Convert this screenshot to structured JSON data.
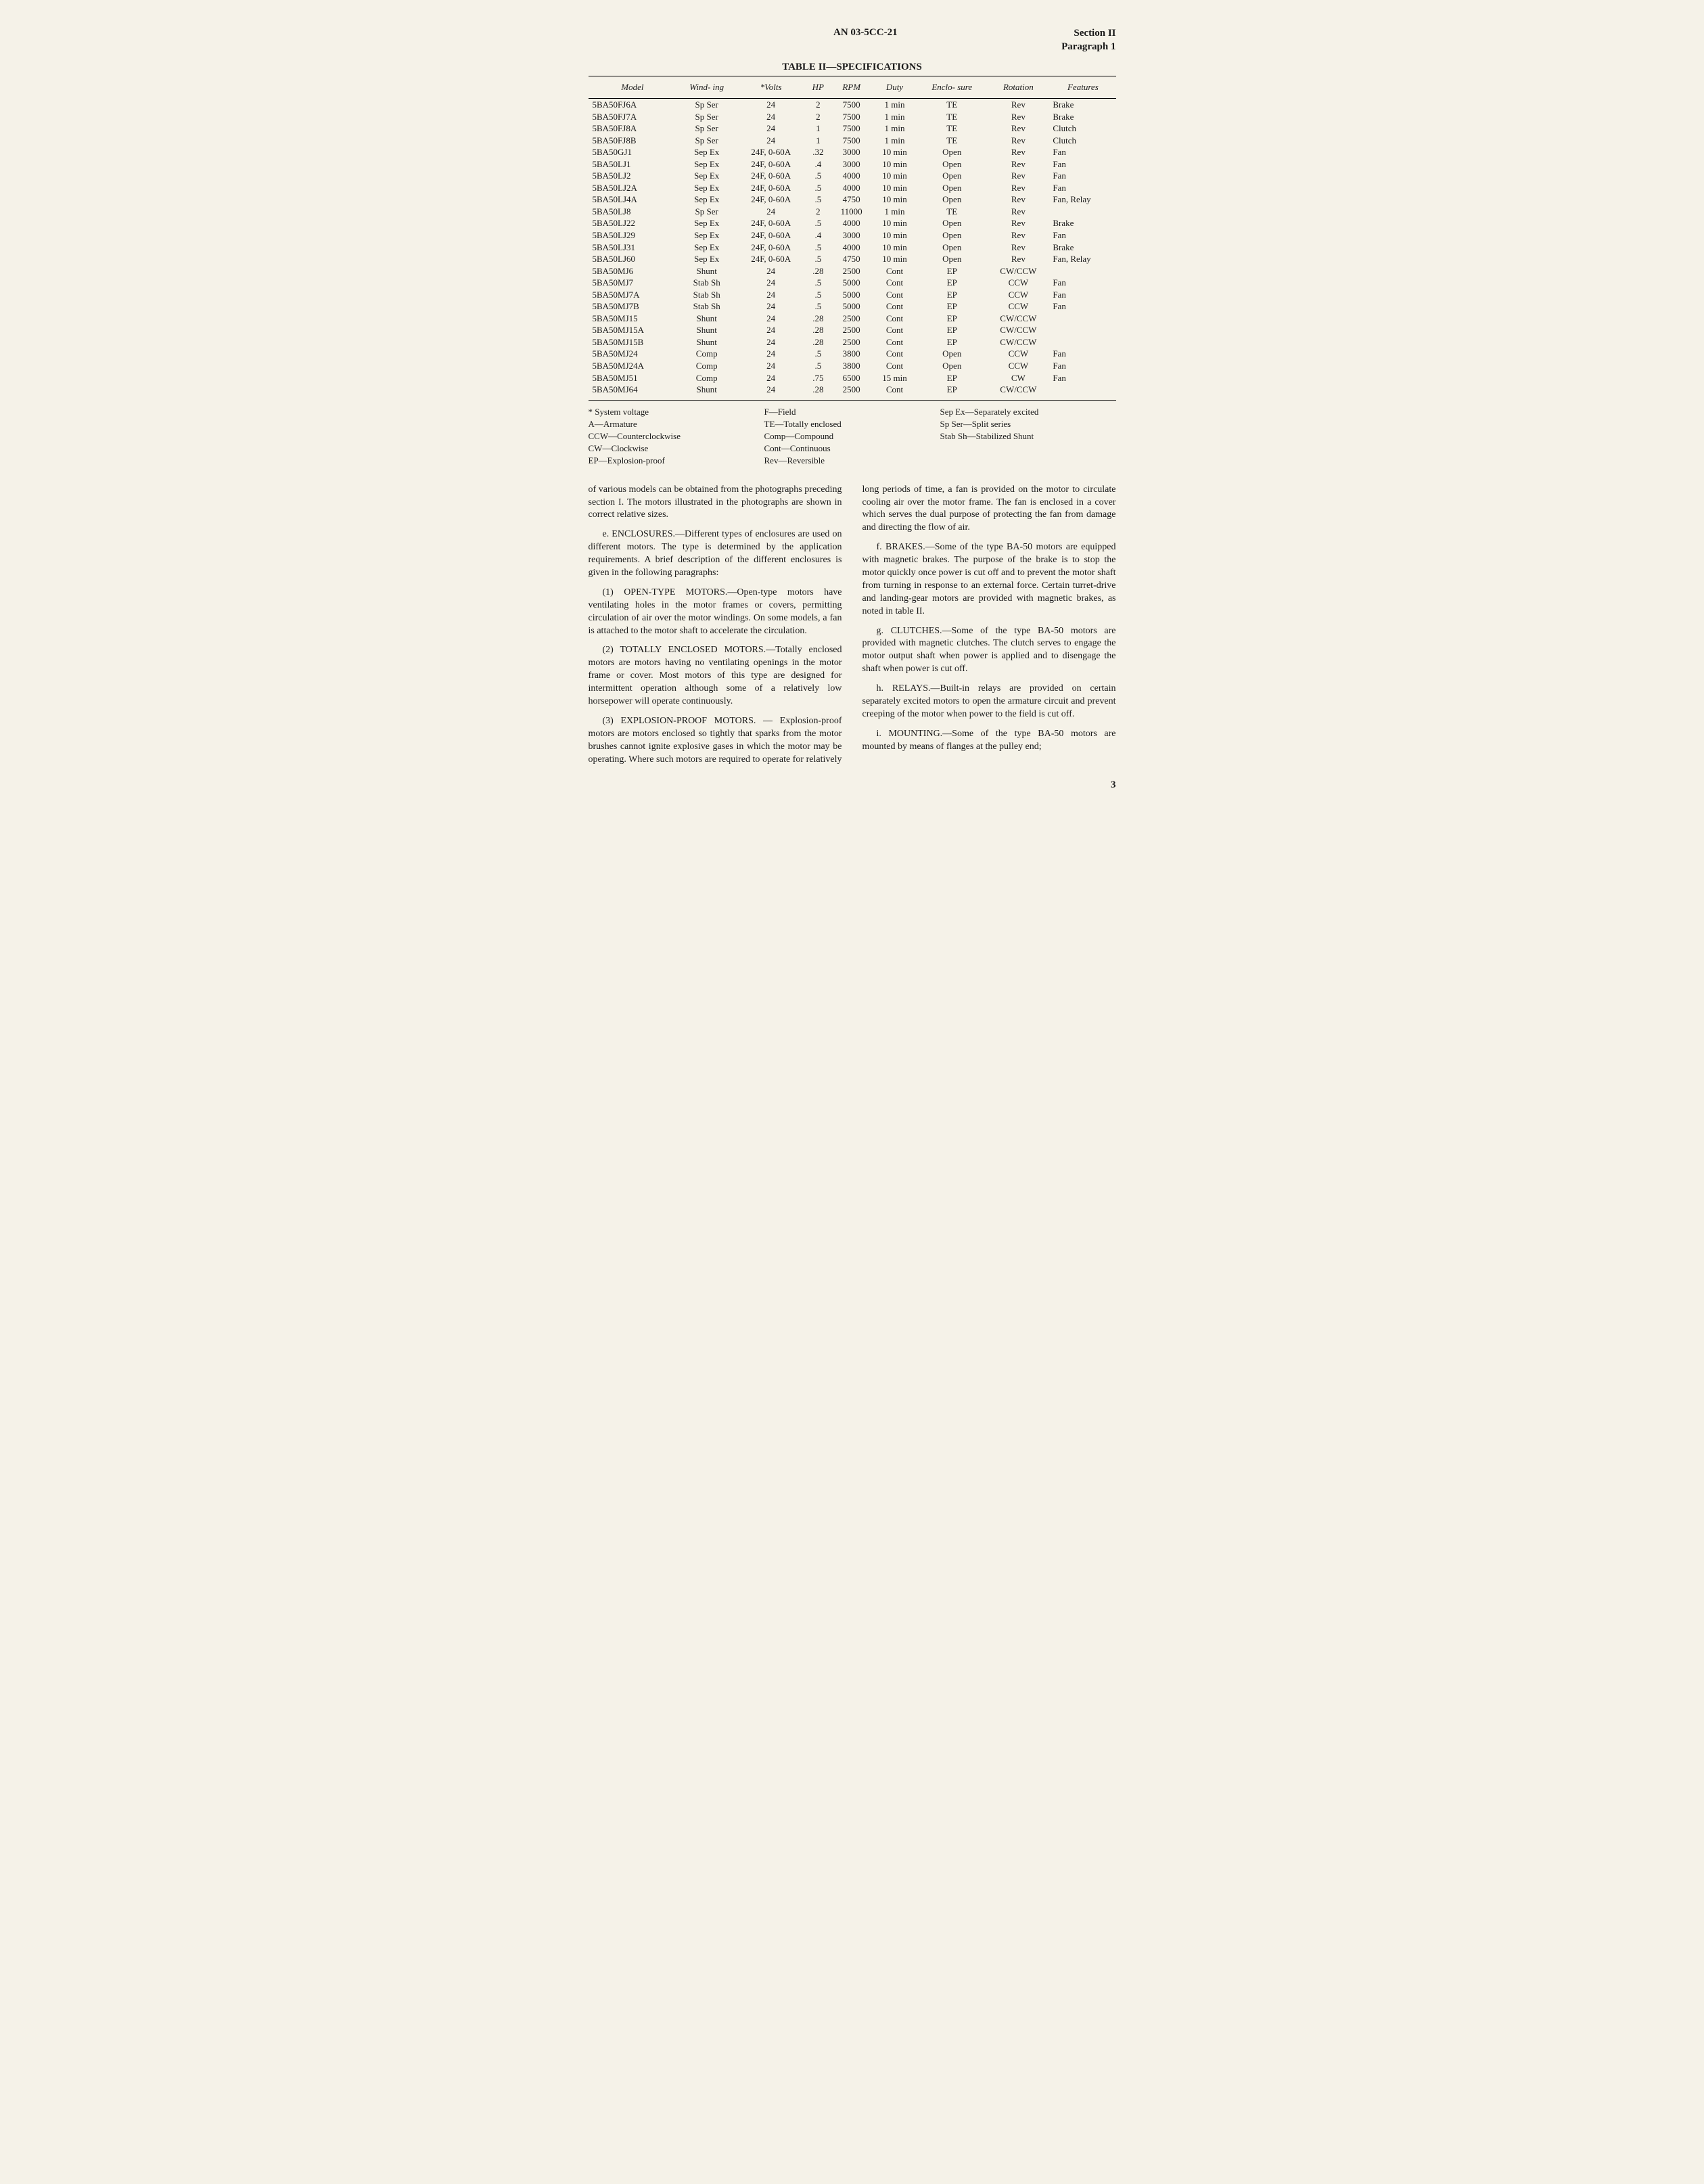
{
  "header": {
    "doc_id": "AN 03-5CC-21",
    "section": "Section II",
    "paragraph": "Paragraph 1"
  },
  "table": {
    "title": "TABLE II—SPECIFICATIONS",
    "columns": [
      "Model",
      "Wind-\ning",
      "*Volts",
      "HP",
      "RPM",
      "Duty",
      "Enclo-\nsure",
      "Rotation",
      "Features"
    ],
    "rows": [
      [
        "5BA50FJ6A",
        "Sp Ser",
        "24",
        "2",
        "7500",
        "1 min",
        "TE",
        "Rev",
        "Brake"
      ],
      [
        "5BA50FJ7A",
        "Sp Ser",
        "24",
        "2",
        "7500",
        "1 min",
        "TE",
        "Rev",
        "Brake"
      ],
      [
        "5BA50FJ8A",
        "Sp Ser",
        "24",
        "1",
        "7500",
        "1 min",
        "TE",
        "Rev",
        "Clutch"
      ],
      [
        "5BA50FJ8B",
        "Sp Ser",
        "24",
        "1",
        "7500",
        "1 min",
        "TE",
        "Rev",
        "Clutch"
      ],
      [
        "5BA50GJ1",
        "Sep Ex",
        "24F, 0-60A",
        ".32",
        "3000",
        "10 min",
        "Open",
        "Rev",
        "Fan"
      ],
      [
        "5BA50LJ1",
        "Sep Ex",
        "24F, 0-60A",
        ".4",
        "3000",
        "10 min",
        "Open",
        "Rev",
        "Fan"
      ],
      [
        "5BA50LJ2",
        "Sep Ex",
        "24F, 0-60A",
        ".5",
        "4000",
        "10 min",
        "Open",
        "Rev",
        "Fan"
      ],
      [
        "5BA50LJ2A",
        "Sep Ex",
        "24F, 0-60A",
        ".5",
        "4000",
        "10 min",
        "Open",
        "Rev",
        "Fan"
      ],
      [
        "5BA50LJ4A",
        "Sep Ex",
        "24F, 0-60A",
        ".5",
        "4750",
        "10 min",
        "Open",
        "Rev",
        "Fan, Relay"
      ],
      [
        "5BA50LJ8",
        "Sp Ser",
        "24",
        "2",
        "11000",
        "1 min",
        "TE",
        "Rev",
        ""
      ],
      [
        "5BA50LJ22",
        "Sep Ex",
        "24F, 0-60A",
        ".5",
        "4000",
        "10 min",
        "Open",
        "Rev",
        "Brake"
      ],
      [
        "5BA50LJ29",
        "Sep Ex",
        "24F, 0-60A",
        ".4",
        "3000",
        "10 min",
        "Open",
        "Rev",
        "Fan"
      ],
      [
        "5BA50LJ31",
        "Sep Ex",
        "24F, 0-60A",
        ".5",
        "4000",
        "10 min",
        "Open",
        "Rev",
        "Brake"
      ],
      [
        "5BA50LJ60",
        "Sep Ex",
        "24F, 0-60A",
        ".5",
        "4750",
        "10 min",
        "Open",
        "Rev",
        "Fan, Relay"
      ],
      [
        "5BA50MJ6",
        "Shunt",
        "24",
        ".28",
        "2500",
        "Cont",
        "EP",
        "CW/CCW",
        ""
      ],
      [
        "5BA50MJ7",
        "Stab Sh",
        "24",
        ".5",
        "5000",
        "Cont",
        "EP",
        "CCW",
        "Fan"
      ],
      [
        "5BA50MJ7A",
        "Stab Sh",
        "24",
        ".5",
        "5000",
        "Cont",
        "EP",
        "CCW",
        "Fan"
      ],
      [
        "5BA50MJ7B",
        "Stab Sh",
        "24",
        ".5",
        "5000",
        "Cont",
        "EP",
        "CCW",
        "Fan"
      ],
      [
        "5BA50MJ15",
        "Shunt",
        "24",
        ".28",
        "2500",
        "Cont",
        "EP",
        "CW/CCW",
        ""
      ],
      [
        "5BA50MJ15A",
        "Shunt",
        "24",
        ".28",
        "2500",
        "Cont",
        "EP",
        "CW/CCW",
        ""
      ],
      [
        "5BA50MJ15B",
        "Shunt",
        "24",
        ".28",
        "2500",
        "Cont",
        "EP",
        "CW/CCW",
        ""
      ],
      [
        "5BA50MJ24",
        "Comp",
        "24",
        ".5",
        "3800",
        "Cont",
        "Open",
        "CCW",
        "Fan"
      ],
      [
        "5BA50MJ24A",
        "Comp",
        "24",
        ".5",
        "3800",
        "Cont",
        "Open",
        "CCW",
        "Fan"
      ],
      [
        "5BA50MJ51",
        "Comp",
        "24",
        ".75",
        "6500",
        "15 min",
        "EP",
        "CW",
        "Fan"
      ],
      [
        "5BA50MJ64",
        "Shunt",
        "24",
        ".28",
        "2500",
        "Cont",
        "EP",
        "CW/CCW",
        ""
      ]
    ]
  },
  "legend": {
    "col1": [
      "* System voltage",
      "A—Armature",
      "CCW—Counterclockwise",
      "CW—Clockwise",
      "EP—Explosion-proof"
    ],
    "col2": [
      "F—Field",
      "TE—Totally enclosed",
      "Comp—Compound",
      "Cont—Continuous",
      "Rev—Reversible"
    ],
    "col3": [
      "Sep Ex—Separately excited",
      "Sp Ser—Split series",
      "Stab Sh—Stabilized Shunt"
    ]
  },
  "body": {
    "p1": "of various models can be obtained from the photographs preceding section I. The motors illustrated in the photographs are shown in correct relative sizes.",
    "p2": "e. ENCLOSURES.—Different types of enclosures are used on different motors. The type is determined by the application requirements. A brief description of the different enclosures is given in the following paragraphs:",
    "p3": "(1) OPEN-TYPE MOTORS.—Open-type motors have ventilating holes in the motor frames or covers, permitting circulation of air over the motor windings. On some models, a fan is attached to the motor shaft to accelerate the circulation.",
    "p4": "(2) TOTALLY ENCLOSED MOTORS.—Totally enclosed motors are motors having no ventilating openings in the motor frame or cover. Most motors of this type are designed for intermittent operation although some of a relatively low horsepower will operate continuously.",
    "p5": "(3) EXPLOSION-PROOF MOTORS. — Explosion-proof motors are motors enclosed so tightly that sparks from the motor brushes cannot ignite explosive gases in which the motor may be operating. Where such motors are required to operate for relatively long periods of time, a fan is provided on the motor to circulate cooling air over the motor frame. The fan is enclosed in a cover which serves the dual purpose of protecting the fan from damage and directing the flow of air.",
    "p6": "f. BRAKES.—Some of the type BA-50 motors are equipped with magnetic brakes. The purpose of the brake is to stop the motor quickly once power is cut off and to prevent the motor shaft from turning in response to an external force. Certain turret-drive and landing-gear motors are provided with magnetic brakes, as noted in table II.",
    "p7": "g. CLUTCHES.—Some of the type BA-50 motors are provided with magnetic clutches. The clutch serves to engage the motor output shaft when power is applied and to disengage the shaft when power is cut off.",
    "p8": "h. RELAYS.—Built-in relays are provided on certain separately excited motors to open the armature circuit and prevent creeping of the motor when power to the field is cut off.",
    "p9": "i. MOUNTING.—Some of the type BA-50 motors are mounted by means of flanges at the pulley end;"
  },
  "page_number": "3"
}
